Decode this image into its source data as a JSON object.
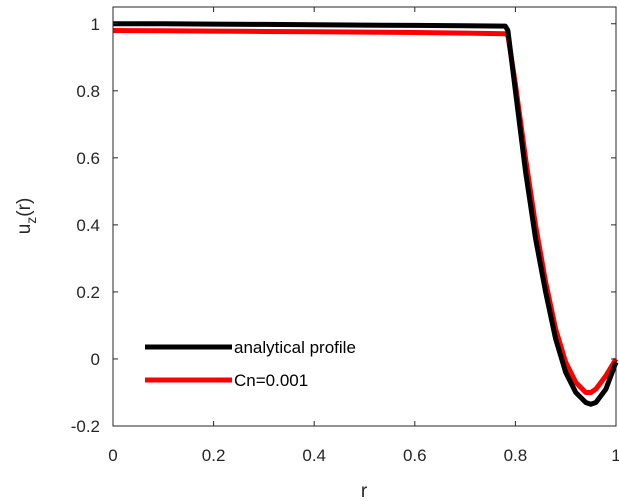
{
  "chart_data": {
    "type": "line",
    "title": "",
    "xlabel": "r",
    "ylabel_main": "u",
    "ylabel_sub": "z",
    "ylabel_suffix": "(r)",
    "xlim": [
      0,
      1
    ],
    "ylim": [
      -0.2,
      1.05
    ],
    "xticks": [
      0,
      0.2,
      0.4,
      0.6,
      0.8,
      1
    ],
    "xtick_labels": [
      "0",
      "0.2",
      "0.4",
      "0.6",
      "0.8",
      "1"
    ],
    "yticks": [
      -0.2,
      0,
      0.2,
      0.4,
      0.6,
      0.8,
      1
    ],
    "ytick_labels": [
      "-0.2",
      "0",
      "0.2",
      "0.4",
      "0.6",
      "0.8",
      "1"
    ],
    "grid": false,
    "legend_position": "bottom-left",
    "series": [
      {
        "name": "analytical profile",
        "color": "#000000",
        "x": [
          0,
          0.1,
          0.2,
          0.3,
          0.4,
          0.5,
          0.6,
          0.7,
          0.78,
          0.785,
          0.8,
          0.82,
          0.84,
          0.86,
          0.88,
          0.9,
          0.92,
          0.94,
          0.95,
          0.96,
          0.98,
          1.0
        ],
        "y": [
          1.0,
          1.0,
          0.999,
          0.998,
          0.997,
          0.996,
          0.995,
          0.994,
          0.993,
          0.98,
          0.8,
          0.56,
          0.36,
          0.2,
          0.06,
          -0.04,
          -0.1,
          -0.13,
          -0.135,
          -0.13,
          -0.09,
          -0.01
        ]
      },
      {
        "name": "Cn=0.001",
        "color": "#ff0000",
        "x": [
          0,
          0.1,
          0.2,
          0.3,
          0.4,
          0.5,
          0.6,
          0.7,
          0.78,
          0.785,
          0.8,
          0.82,
          0.84,
          0.86,
          0.88,
          0.9,
          0.92,
          0.94,
          0.95,
          0.96,
          0.98,
          1.0
        ],
        "y": [
          0.98,
          0.979,
          0.978,
          0.977,
          0.976,
          0.975,
          0.974,
          0.972,
          0.97,
          0.965,
          0.82,
          0.6,
          0.4,
          0.23,
          0.09,
          -0.01,
          -0.07,
          -0.1,
          -0.1,
          -0.09,
          -0.05,
          0.0
        ]
      }
    ]
  }
}
